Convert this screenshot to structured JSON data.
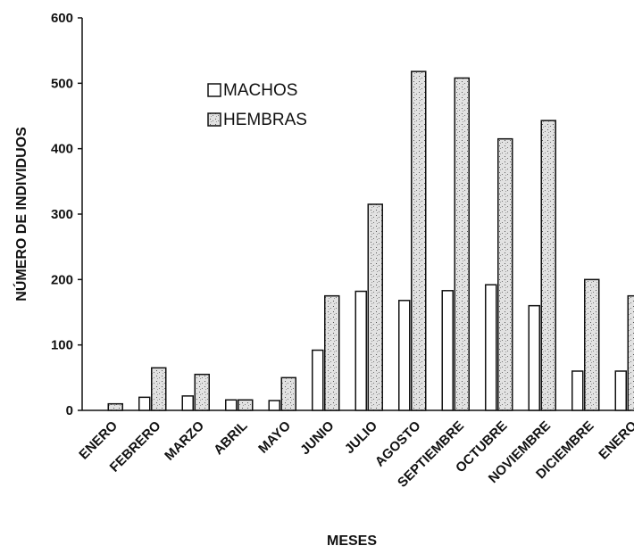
{
  "chart_data": {
    "type": "bar",
    "title": "",
    "xlabel": "MESES",
    "ylabel": "NÚMERO DE INDIVIDUOS",
    "ylim": [
      0,
      600
    ],
    "yticks": [
      "0",
      "100",
      "200",
      "300",
      "400",
      "500",
      "600"
    ],
    "categories": [
      "ENERO",
      "FEBRERO",
      "MARZO",
      "ABRIL",
      "MAYO",
      "JUNIO",
      "JULIO",
      "AGOSTO",
      "SEPTIEMBRE",
      "OCTUBRE",
      "NOVIEMBRE",
      "DICIEMBRE",
      "ENERO"
    ],
    "series": [
      {
        "name": "MACHOS",
        "values": [
          0,
          20,
          22,
          16,
          15,
          92,
          182,
          168,
          183,
          192,
          160,
          60,
          60
        ]
      },
      {
        "name": "HEMBRAS",
        "values": [
          10,
          65,
          55,
          16,
          50,
          175,
          315,
          518,
          508,
          415,
          443,
          200,
          175
        ]
      }
    ],
    "legend": "top-left inside plot",
    "grid": false,
    "colors": {
      "machos": "#ffffff",
      "hembras": "#d0d0d0",
      "stroke": "#111111"
    }
  }
}
